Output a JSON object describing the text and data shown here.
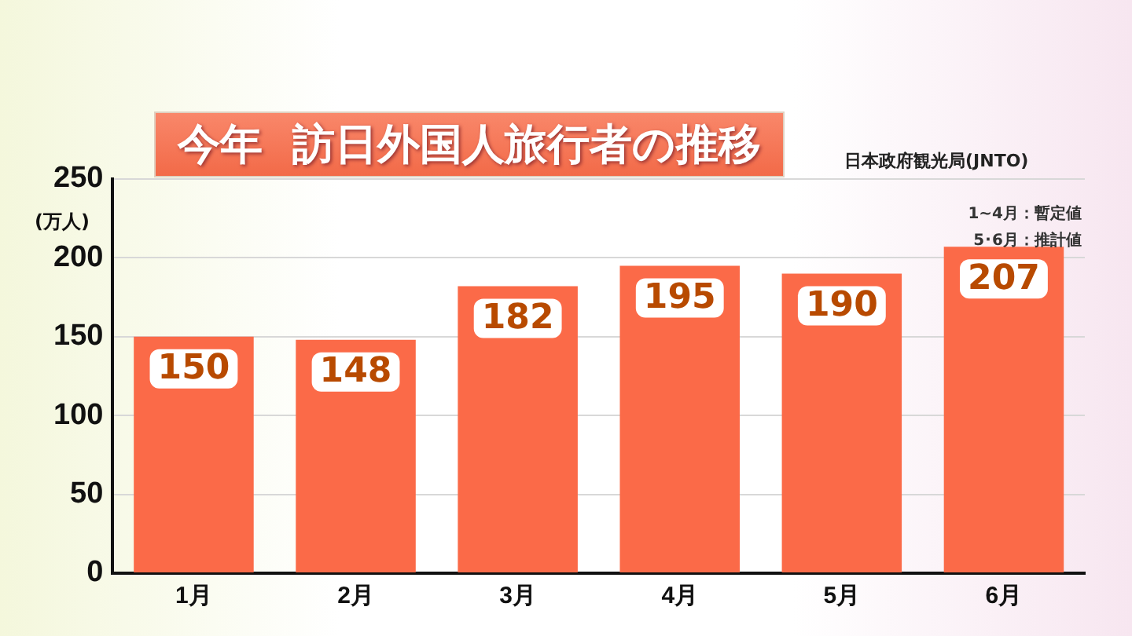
{
  "chart_data": {
    "type": "bar",
    "title": "今年  訪日外国人旅行者の推移",
    "ylabel": "(万人)",
    "annotations": [
      "日本政府観光局(JNTO)",
      "1~4月：暫定値",
      "5･6月：推計値"
    ],
    "categories": [
      "1月",
      "2月",
      "3月",
      "4月",
      "5月",
      "6月"
    ],
    "values": [
      150,
      148,
      182,
      195,
      190,
      207
    ],
    "color": "#fb6a48",
    "ylim": [
      0,
      250
    ],
    "yticks": [
      0,
      50,
      100,
      150,
      200,
      250
    ],
    "grid": "y",
    "data_labels": true
  }
}
